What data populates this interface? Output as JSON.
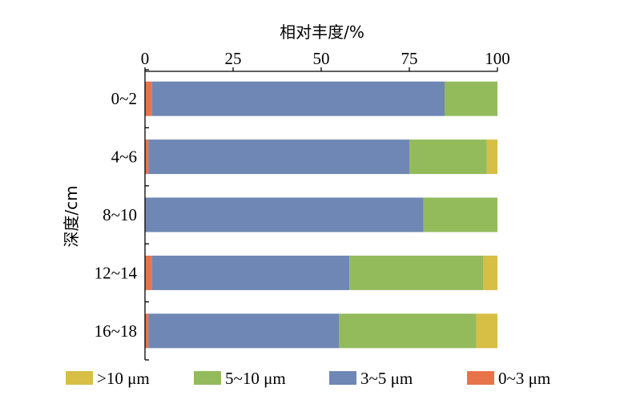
{
  "chart_data": {
    "type": "bar",
    "orientation": "horizontal",
    "stacked": true,
    "xlabel": "相对丰度/%",
    "ylabel": "深度/cm",
    "xlim": [
      0,
      100
    ],
    "xticks": [
      "0",
      "25",
      "50",
      "75",
      "100"
    ],
    "x_axis_position": "top",
    "grid": false,
    "legend_position": "bottom",
    "categories": [
      "0~2",
      "4~6",
      "8~10",
      "12~14",
      "16~18"
    ],
    "series": [
      {
        "name": "0~3 μm",
        "color": "#e8734a",
        "values": [
          2,
          1,
          0,
          2,
          1
        ]
      },
      {
        "name": "3~5 μm",
        "color": "#6f87b4",
        "values": [
          83,
          74,
          79,
          56,
          54
        ]
      },
      {
        "name": "5~10 μm",
        "color": "#93bb5c",
        "values": [
          15,
          22,
          21,
          38,
          39
        ]
      },
      {
        "name": ">10 μm",
        "color": "#d7be45",
        "values": [
          0,
          3,
          0,
          4,
          6
        ]
      }
    ],
    "legend_order": [
      ">10 μm",
      "5~10 μm",
      "3~5 μm",
      "0~3 μm"
    ]
  }
}
